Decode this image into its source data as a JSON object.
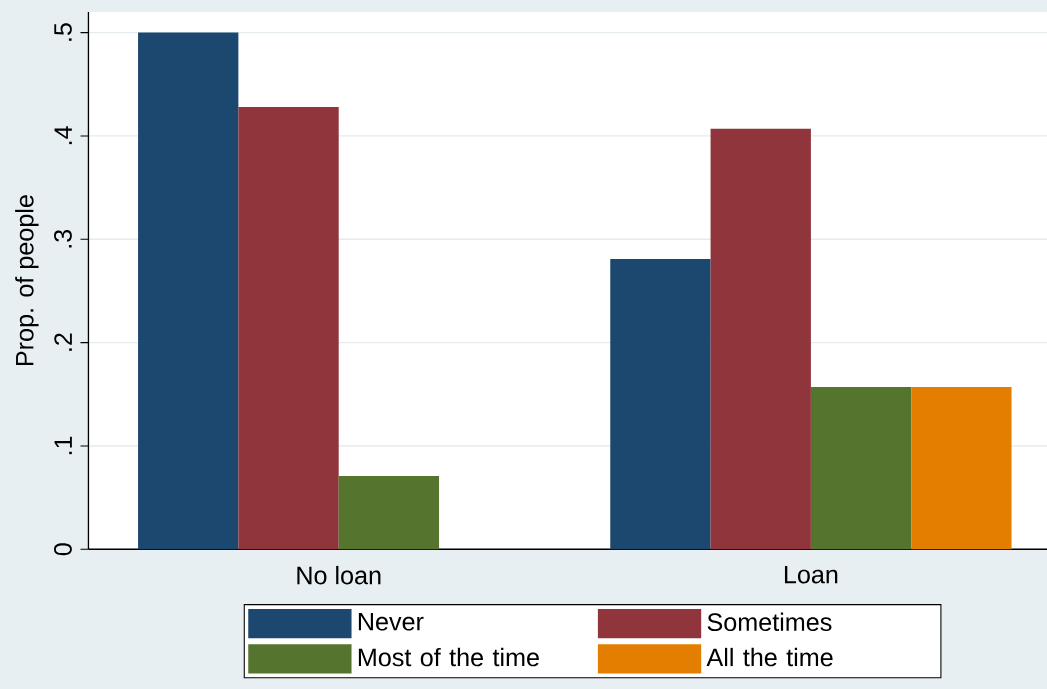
{
  "chart_data": {
    "type": "bar",
    "ylabel": "Prop. of people",
    "categories": [
      "No loan",
      "Loan"
    ],
    "series": [
      {
        "name": "Never",
        "color": "#1c4870",
        "values": [
          0.5,
          0.281
        ]
      },
      {
        "name": "Sometimes",
        "color": "#90353b",
        "values": [
          0.428,
          0.407
        ]
      },
      {
        "name": "Most of the time",
        "color": "#55752f",
        "values": [
          0.071,
          0.157
        ]
      },
      {
        "name": "All the time",
        "color": "#e37e00",
        "values": [
          0,
          0.157
        ]
      }
    ],
    "ylim": [
      0,
      0.52
    ],
    "yticks": [
      {
        "value": 0,
        "label": "0"
      },
      {
        "value": 0.1,
        "label": ".1"
      },
      {
        "value": 0.2,
        "label": ".2"
      },
      {
        "value": 0.3,
        "label": ".3"
      },
      {
        "value": 0.4,
        "label": ".4"
      },
      {
        "value": 0.5,
        "label": ".5"
      }
    ],
    "grid": "y",
    "legend": "bottom"
  }
}
